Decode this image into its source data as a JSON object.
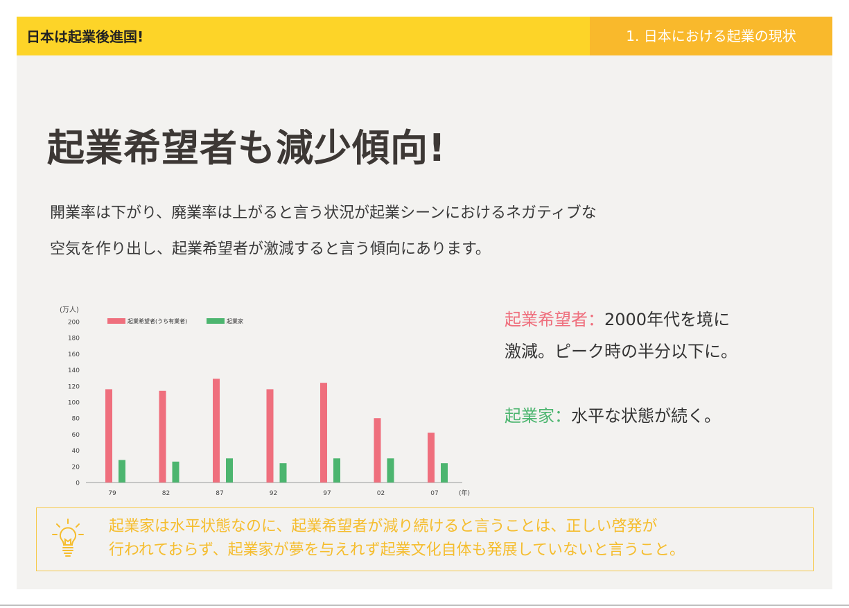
{
  "header": {
    "left_title": "日本は起業後進国!",
    "right_title": "1. 日本における起業の現状"
  },
  "title": "起業希望者も減少傾向!",
  "lead": [
    "開業率は下がり、廃業率は上がると言う状況が起業シーンにおけるネガティブな",
    "空気を作り出し、起業希望者が激減すると言う傾向にあります。"
  ],
  "notes": {
    "aspirants_label": "起業希望者：",
    "aspirants_text_1": "2000年代を境に",
    "aspirants_text_2": "激減。ピーク時の半分以下に。",
    "founders_label": "起業家：",
    "founders_text": "水平な状態が続く。"
  },
  "callout": {
    "icon": "lightbulb-icon",
    "line1": "起業家は水平状態なのに、起業希望者が減り続けると言うことは、正しい啓発が",
    "line2": "行われておらず、起業家が夢を与えれず起業文化自体も発展していないと言うこと。"
  },
  "colors": {
    "yellow_header": "#fdd428",
    "orange_tab": "#f9b92c",
    "series_pink": "#ef6f7d",
    "series_green": "#4cb56f",
    "callout_text": "#f5bd2e"
  },
  "chart_data": {
    "type": "bar",
    "categories": [
      "79",
      "82",
      "87",
      "92",
      "97",
      "02",
      "07"
    ],
    "series": [
      {
        "name": "起業希望者(うち有業者)",
        "color": "#ef6f7d",
        "values": [
          116,
          114,
          129,
          116,
          124,
          80,
          62
        ]
      },
      {
        "name": "起業家",
        "color": "#4cb56f",
        "values": [
          28,
          26,
          30,
          24,
          30,
          30,
          24
        ]
      }
    ],
    "ylabel": "(万人)",
    "xlabel": "(年)",
    "ylim": [
      0,
      200
    ],
    "yticks": [
      0,
      20,
      40,
      60,
      80,
      100,
      120,
      140,
      160,
      180,
      200
    ],
    "legend": "top-left",
    "grid": false
  }
}
